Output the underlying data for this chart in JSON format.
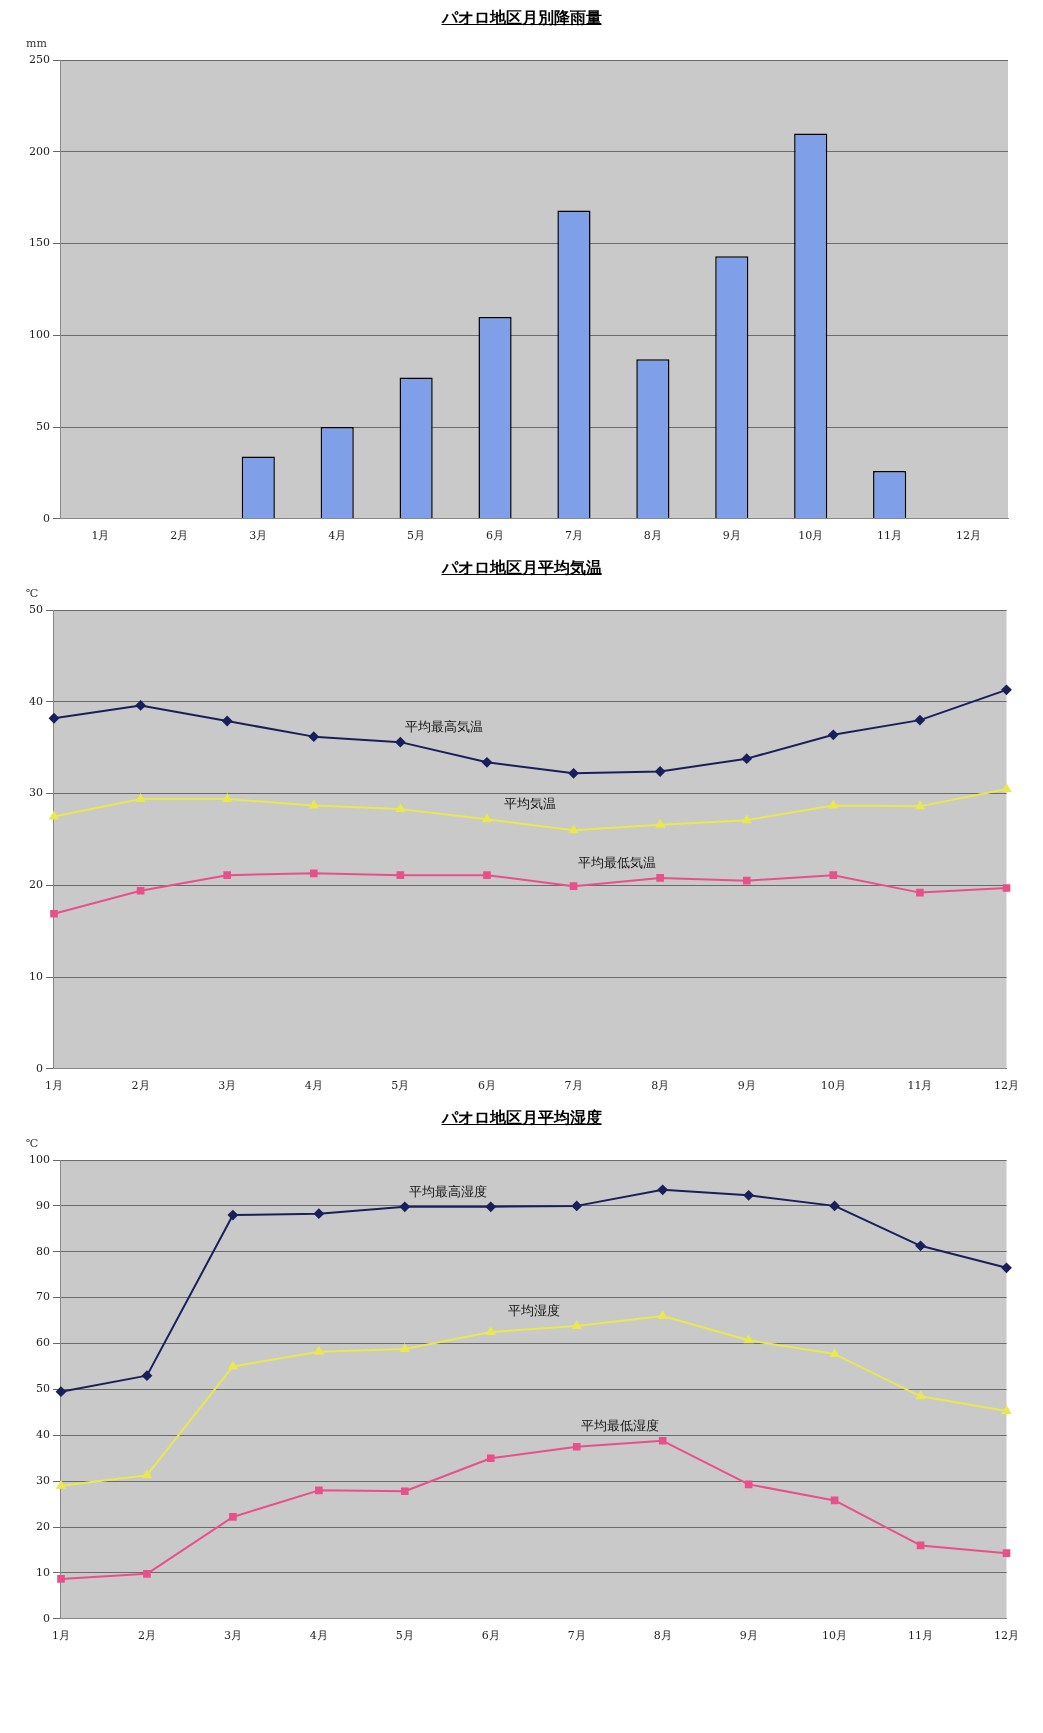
{
  "chart_data": [
    {
      "type": "bar",
      "title": "パオロ地区月別降雨量",
      "ylabel": "mm",
      "categories": [
        "1月",
        "2月",
        "3月",
        "4月",
        "5月",
        "6月",
        "7月",
        "8月",
        "9月",
        "10月",
        "11月",
        "12月"
      ],
      "values": [
        0,
        0,
        34,
        50,
        77,
        110,
        168,
        87,
        143,
        210,
        26,
        0
      ],
      "color": "#7f9fe8",
      "ylim": [
        0,
        250
      ],
      "yticks": [
        0,
        50,
        100,
        150,
        200,
        250
      ],
      "grid": "y",
      "legend": false
    },
    {
      "type": "line",
      "title": "パオロ地区月平均気温",
      "ylabel": "℃",
      "categories": [
        "1月",
        "2月",
        "3月",
        "4月",
        "5月",
        "6月",
        "7月",
        "8月",
        "9月",
        "10月",
        "11月",
        "12月"
      ],
      "series": [
        {
          "name": "平均最高気温",
          "color": "#1a1f5c",
          "marker": "diamond",
          "values": [
            38.2,
            39.6,
            37.9,
            36.2,
            35.6,
            33.4,
            32.2,
            32.4,
            33.8,
            36.4,
            38,
            41.3
          ]
        },
        {
          "name": "平均気温",
          "color": "#e8e850",
          "marker": "triangle",
          "values": [
            27.5,
            29.4,
            29.4,
            28.7,
            28.3,
            27.2,
            26,
            26.6,
            27.1,
            28.7,
            28.6,
            30.5
          ]
        },
        {
          "name": "平均最低気温",
          "color": "#e8508a",
          "marker": "square",
          "values": [
            16.9,
            19.4,
            21.1,
            21.3,
            21.1,
            21.1,
            19.9,
            20.8,
            20.5,
            21.1,
            19.2,
            19.7
          ]
        }
      ],
      "ylim": [
        0,
        50
      ],
      "yticks": [
        0,
        10,
        20,
        30,
        40,
        50
      ],
      "grid": "y",
      "legend": false,
      "line_style": "solid"
    },
    {
      "type": "line",
      "title": "パオロ地区月平均湿度",
      "ylabel": "℃",
      "categories": [
        "1月",
        "2月",
        "3月",
        "4月",
        "5月",
        "6月",
        "7月",
        "8月",
        "9月",
        "10月",
        "11月",
        "12月"
      ],
      "series": [
        {
          "name": "平均最高湿度",
          "color": "#1a1f5c",
          "marker": "diamond",
          "values": [
            49.5,
            53,
            88,
            88.3,
            89.8,
            89.8,
            90,
            93.5,
            92.3,
            90,
            81.3,
            76.5
          ]
        },
        {
          "name": "平均湿度",
          "color": "#e8e850",
          "marker": "triangle",
          "values": [
            29,
            31.3,
            55,
            58.2,
            58.8,
            62.5,
            63.8,
            66,
            60.7,
            57.7,
            48.5,
            45.3
          ]
        },
        {
          "name": "平均最低湿度",
          "color": "#e8508a",
          "marker": "square",
          "values": [
            8.7,
            9.8,
            22.2,
            28,
            27.8,
            35,
            37.5,
            38.8,
            29.3,
            25.8,
            16,
            14.3
          ]
        }
      ],
      "ylim": [
        0,
        100
      ],
      "yticks": [
        0,
        10,
        20,
        30,
        40,
        50,
        60,
        70,
        80,
        90,
        100
      ],
      "grid": "y",
      "legend": false,
      "line_style": "solid"
    }
  ]
}
